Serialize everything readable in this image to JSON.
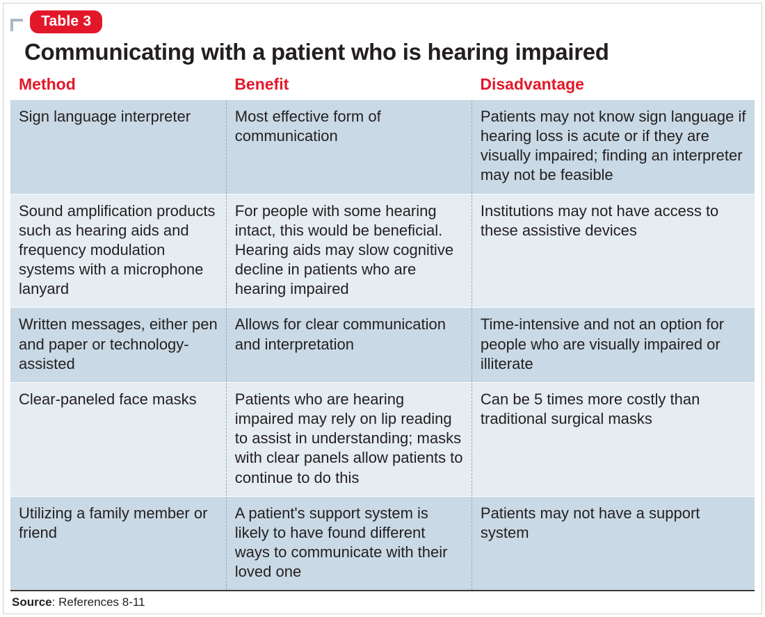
{
  "badge": "Table 3",
  "title": "Communicating with a patient who is hearing impaired",
  "columns": [
    "Method",
    "Benefit",
    "Disadvantage"
  ],
  "colors": {
    "accent_red": "#e2182a",
    "row_light": "#e5ecf2",
    "row_dark": "#c9d9e5",
    "corner_mark": "#a8b8c6",
    "col_divider": "#9aa8b3",
    "bottom_rule": "#3a3a3a",
    "text": "#231f20",
    "background": "#ffffff"
  },
  "typography": {
    "title_fontsize_pt": 25,
    "header_fontsize_pt": 17,
    "cell_fontsize_pt": 16,
    "source_fontsize_pt": 13,
    "font_family": "Arial / Helvetica"
  },
  "column_widths_pct": [
    29,
    33,
    38
  ],
  "rows": [
    {
      "method": "Sign language interpreter",
      "benefit": "Most effective form of communication",
      "disadvantage": "Patients may not know sign language if hearing loss is acute or if they are visually impaired; finding an interpreter may not be feasible"
    },
    {
      "method": "Sound amplification products such as hearing aids and frequency modulation systems with a microphone lanyard",
      "benefit": "For people with some hearing intact, this would be beneficial. Hearing aids may slow cognitive decline in patients who are hearing impaired",
      "disadvantage": "Institutions may not have access to these assistive devices"
    },
    {
      "method": "Written messages, either pen and paper or technology-assisted",
      "benefit": "Allows for clear communication and interpretation",
      "disadvantage": "Time-intensive and not an option for people who are visually impaired or illiterate"
    },
    {
      "method": "Clear-paneled face masks",
      "benefit": "Patients who are hearing impaired may rely on lip reading to assist in understanding; masks with clear panels allow patients to continue to do this",
      "disadvantage": "Can be 5 times more costly than traditional surgical masks"
    },
    {
      "method": "Utilizing a family member or friend",
      "benefit": "A patient's support system is likely to have found different ways to communicate with their loved one",
      "disadvantage": "Patients may not have a support system"
    }
  ],
  "source": {
    "label": "Source",
    "text": ": References 8-11"
  }
}
